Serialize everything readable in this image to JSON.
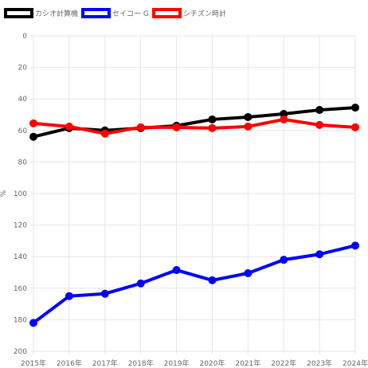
{
  "chart_data": {
    "type": "line",
    "title": "",
    "xlabel": "",
    "ylabel": "%",
    "ylim": [
      0,
      200
    ],
    "y_inverted": true,
    "y_ticks": [
      0,
      20,
      40,
      60,
      80,
      100,
      120,
      140,
      160,
      180,
      200
    ],
    "grid": true,
    "legend_position": "top-left",
    "categories": [
      "2015年",
      "2016年",
      "2017年",
      "2018年",
      "2019年",
      "2020年",
      "2021年",
      "2022年",
      "2023年",
      "2024年"
    ],
    "series": [
      {
        "name": "カシオ計算機",
        "color": "#000000",
        "values": [
          64,
          58.5,
          60,
          58.5,
          57,
          53,
          51.5,
          49.5,
          47,
          45.5
        ]
      },
      {
        "name": "セイコー G",
        "color": "#0000ff",
        "values": [
          182,
          165,
          163.5,
          157,
          148.5,
          155,
          150.5,
          142,
          138.5,
          133
        ]
      },
      {
        "name": "シチズン時計",
        "color": "#ff0000",
        "values": [
          55.5,
          57.5,
          62,
          58,
          58,
          58.5,
          57.5,
          53,
          56.5,
          58
        ]
      }
    ]
  }
}
